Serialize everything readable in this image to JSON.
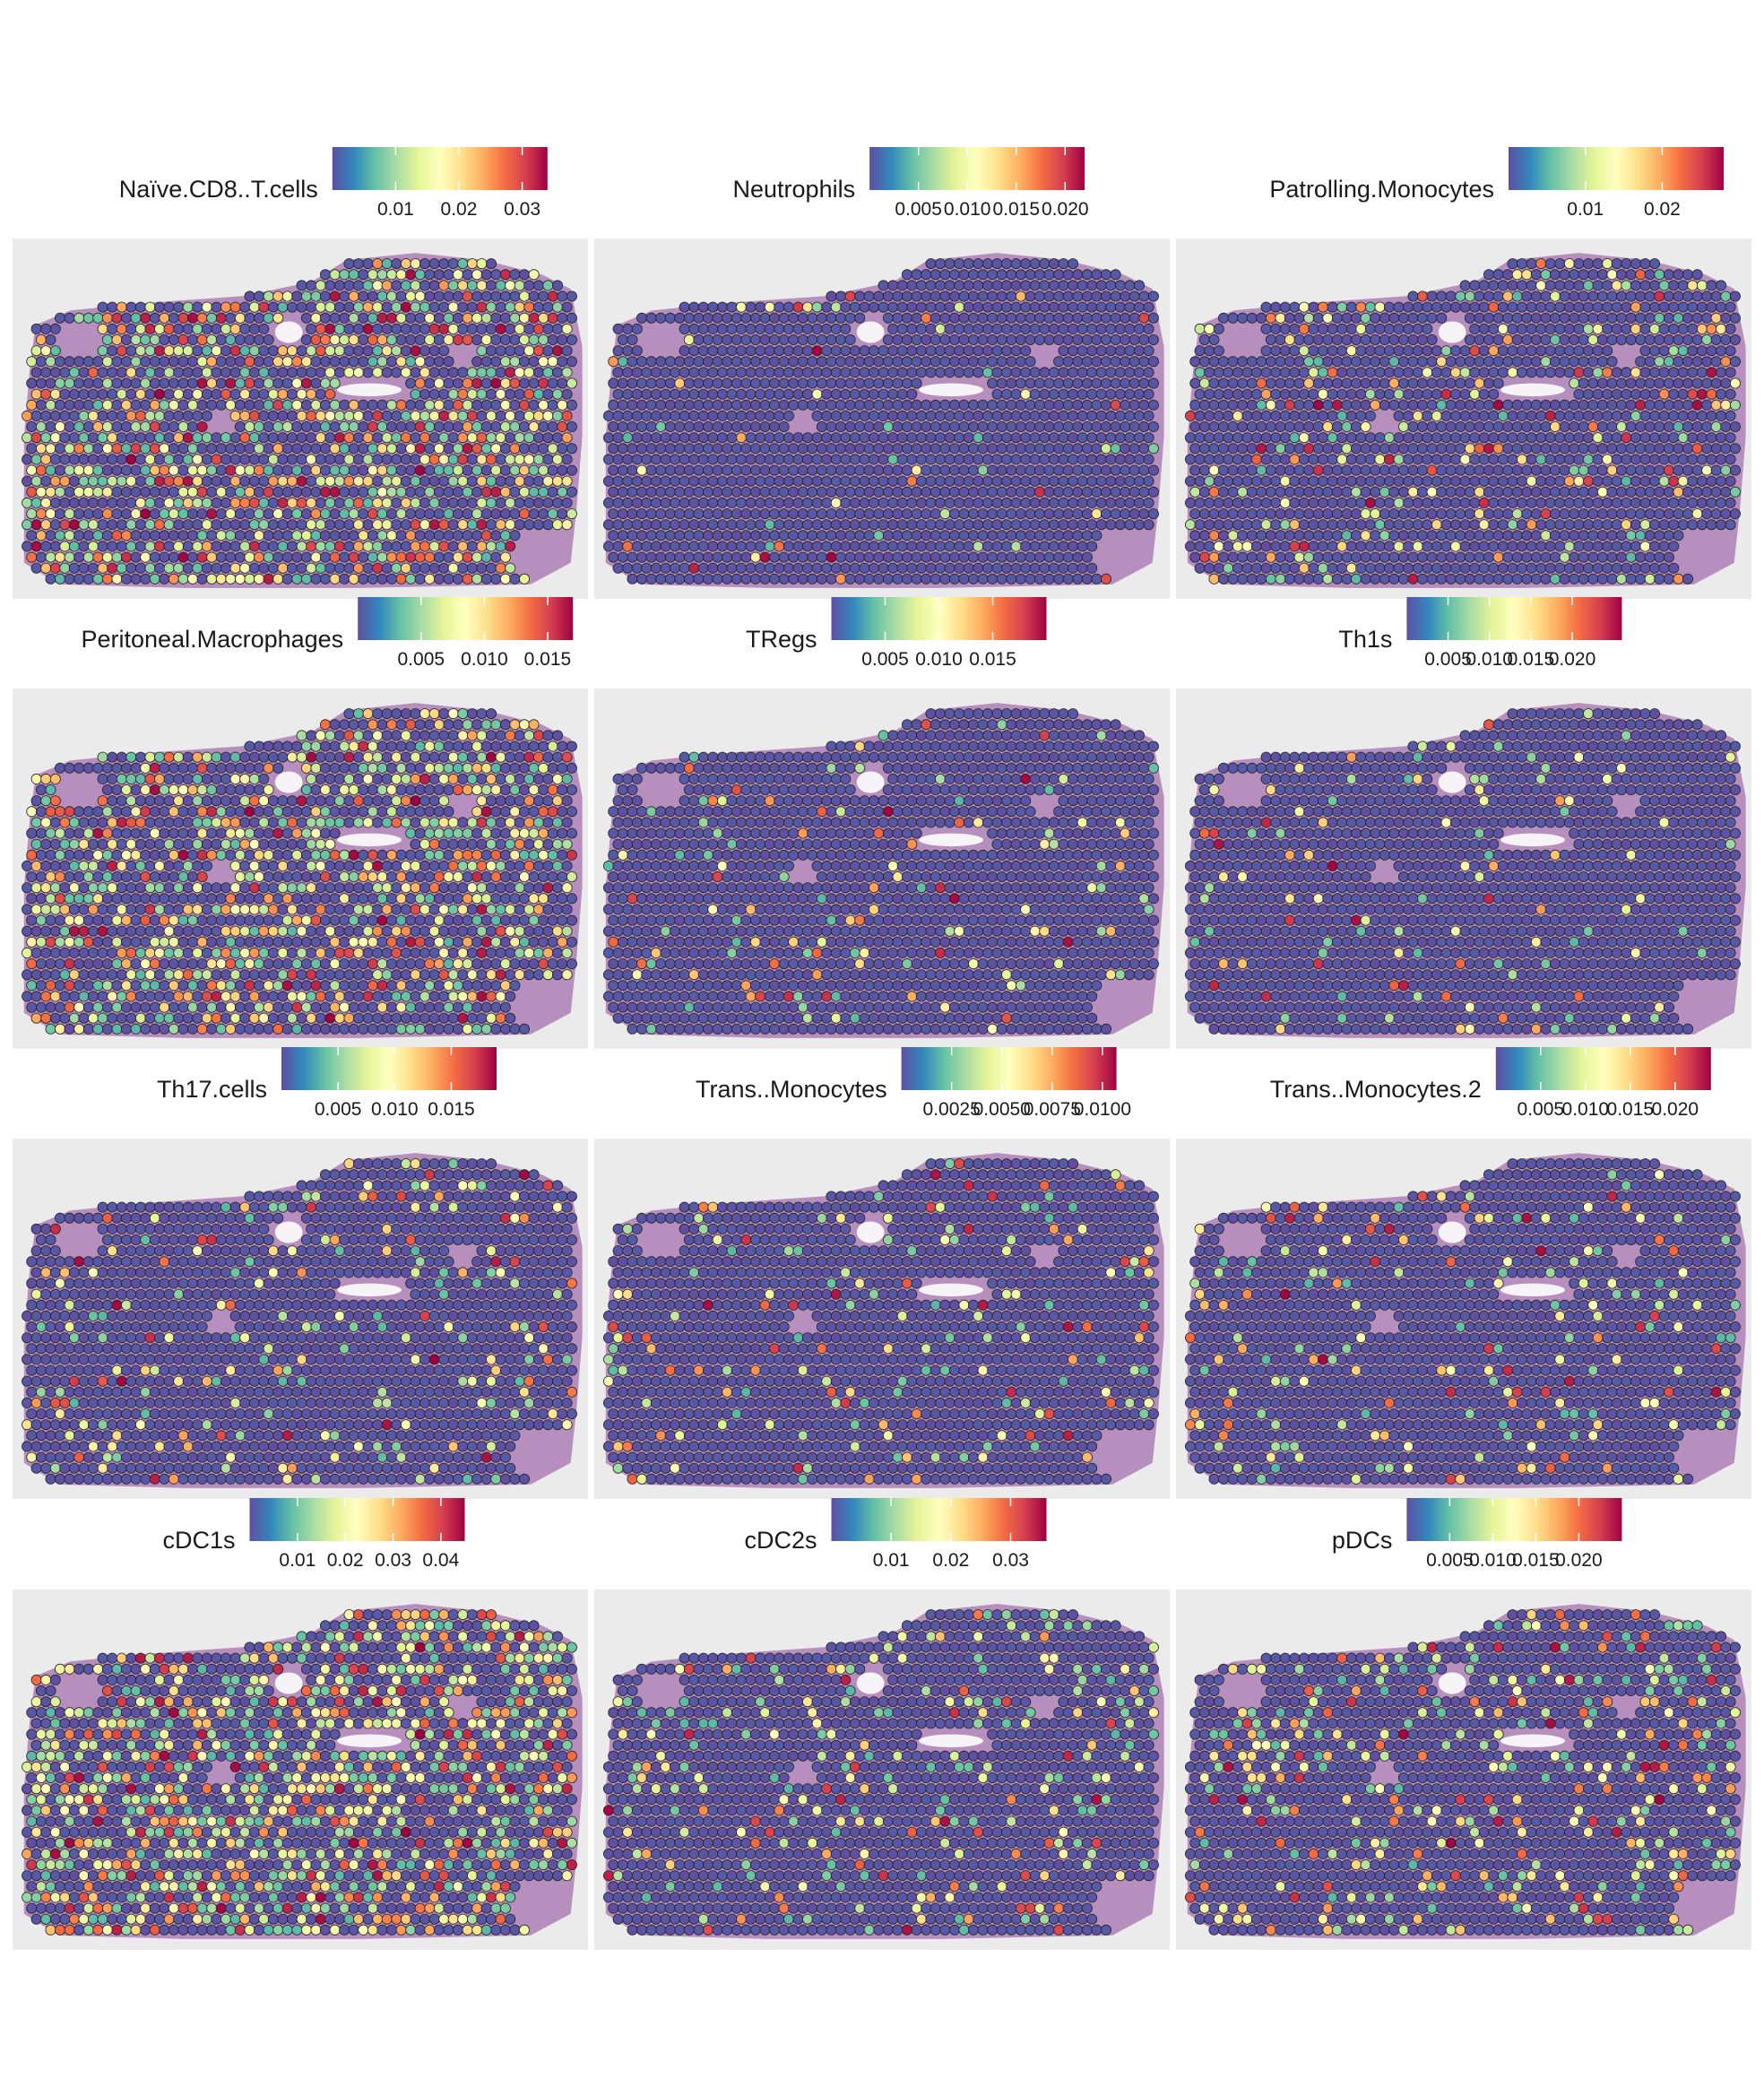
{
  "colorscale": {
    "name": "Spectral (reversed)",
    "stops": [
      "#5E4FA2",
      "#3288BD",
      "#66C2A5",
      "#ABDDA4",
      "#E6F598",
      "#FFFFBF",
      "#FEE08B",
      "#FDAE61",
      "#F46D43",
      "#D53E4F",
      "#9E0142"
    ]
  },
  "colors": {
    "panel_background": "#EBEBEB",
    "tissue": "#B78FBF",
    "spot_outline": "#222222",
    "low_value_spot": "#5E4FA2"
  },
  "chart_data": [
    {
      "type": "scatter",
      "title": "Naïve.CD8..T.cells",
      "legend_range": [
        0,
        0.034
      ],
      "legend_ticks": [
        {
          "value": 0.01,
          "label": "0.01"
        },
        {
          "value": 0.02,
          "label": "0.02"
        },
        {
          "value": 0.03,
          "label": "0.03"
        }
      ],
      "max_value": 0.034,
      "density": 0.5
    },
    {
      "type": "scatter",
      "title": "Neutrophils",
      "legend_range": [
        0,
        0.022
      ],
      "legend_ticks": [
        {
          "value": 0.005,
          "label": "0.005"
        },
        {
          "value": 0.01,
          "label": "0.010"
        },
        {
          "value": 0.015,
          "label": "0.015"
        },
        {
          "value": 0.02,
          "label": "0.020"
        }
      ],
      "max_value": 0.022,
      "density": 0.03
    },
    {
      "type": "scatter",
      "title": "Patrolling.Monocytes",
      "legend_range": [
        0,
        0.028
      ],
      "legend_ticks": [
        {
          "value": 0.01,
          "label": "0.01"
        },
        {
          "value": 0.02,
          "label": "0.02"
        }
      ],
      "max_value": 0.028,
      "density": 0.17
    },
    {
      "type": "scatter",
      "title": "Peritoneal.Macrophages",
      "legend_range": [
        0,
        0.017
      ],
      "legend_ticks": [
        {
          "value": 0.005,
          "label": "0.005"
        },
        {
          "value": 0.01,
          "label": "0.010"
        },
        {
          "value": 0.015,
          "label": "0.015"
        }
      ],
      "max_value": 0.017,
      "density": 0.46
    },
    {
      "type": "scatter",
      "title": "TRegs",
      "legend_range": [
        0,
        0.02
      ],
      "legend_ticks": [
        {
          "value": 0.005,
          "label": "0.005"
        },
        {
          "value": 0.01,
          "label": "0.010"
        },
        {
          "value": 0.015,
          "label": "0.015"
        }
      ],
      "max_value": 0.02,
      "density": 0.08
    },
    {
      "type": "scatter",
      "title": "Th1s",
      "legend_range": [
        0,
        0.026
      ],
      "legend_ticks": [
        {
          "value": 0.005,
          "label": "0.005"
        },
        {
          "value": 0.01,
          "label": "0.010"
        },
        {
          "value": 0.015,
          "label": "0.015"
        },
        {
          "value": 0.02,
          "label": "0.020"
        }
      ],
      "max_value": 0.026,
      "density": 0.07
    },
    {
      "type": "scatter",
      "title": "Th17.cells",
      "legend_range": [
        0,
        0.019
      ],
      "legend_ticks": [
        {
          "value": 0.005,
          "label": "0.005"
        },
        {
          "value": 0.01,
          "label": "0.010"
        },
        {
          "value": 0.015,
          "label": "0.015"
        }
      ],
      "max_value": 0.019,
      "density": 0.14
    },
    {
      "type": "scatter",
      "title": "Trans..Monocytes",
      "legend_range": [
        0,
        0.0107
      ],
      "legend_ticks": [
        {
          "value": 0.0025,
          "label": "0.0025"
        },
        {
          "value": 0.005,
          "label": "0.0050"
        },
        {
          "value": 0.0075,
          "label": "0.0075"
        },
        {
          "value": 0.01,
          "label": "0.0100"
        }
      ],
      "max_value": 0.0107,
      "density": 0.1
    },
    {
      "type": "scatter",
      "title": "Trans..Monocytes.2",
      "legend_range": [
        0,
        0.024
      ],
      "legend_ticks": [
        {
          "value": 0.005,
          "label": "0.005"
        },
        {
          "value": 0.01,
          "label": "0.010"
        },
        {
          "value": 0.015,
          "label": "0.015"
        },
        {
          "value": 0.02,
          "label": "0.020"
        }
      ],
      "max_value": 0.024,
      "density": 0.11
    },
    {
      "type": "scatter",
      "title": "cDC1s",
      "legend_range": [
        0,
        0.045
      ],
      "legend_ticks": [
        {
          "value": 0.01,
          "label": "0.01"
        },
        {
          "value": 0.02,
          "label": "0.02"
        },
        {
          "value": 0.03,
          "label": "0.03"
        },
        {
          "value": 0.04,
          "label": "0.04"
        }
      ],
      "max_value": 0.045,
      "density": 0.5
    },
    {
      "type": "scatter",
      "title": "cDC2s",
      "legend_range": [
        0,
        0.036
      ],
      "legend_ticks": [
        {
          "value": 0.01,
          "label": "0.01"
        },
        {
          "value": 0.02,
          "label": "0.02"
        },
        {
          "value": 0.03,
          "label": "0.03"
        }
      ],
      "max_value": 0.036,
      "density": 0.16
    },
    {
      "type": "scatter",
      "title": "pDCs",
      "legend_range": [
        0,
        0.025
      ],
      "legend_ticks": [
        {
          "value": 0.005,
          "label": "0.005"
        },
        {
          "value": 0.01,
          "label": "0.010"
        },
        {
          "value": 0.015,
          "label": "0.015"
        },
        {
          "value": 0.02,
          "label": "0.020"
        }
      ],
      "max_value": 0.025,
      "density": 0.22
    }
  ]
}
